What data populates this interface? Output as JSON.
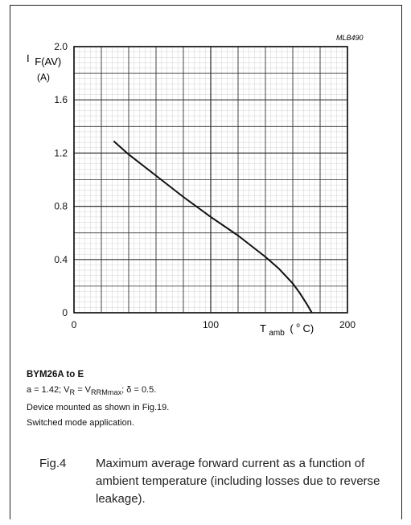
{
  "chart_data": {
    "type": "line",
    "ref_code": "MLB490",
    "ylabel_main": "I",
    "ylabel_sub": "F(AV)",
    "ylabel_unit": "(A)",
    "xlabel_main": "T",
    "xlabel_sub": "amb",
    "xlabel_unit_prefix": "(",
    "xlabel_unit_sup": "o",
    "xlabel_unit_suffix": "C)",
    "xlim": [
      0,
      200
    ],
    "ylim": [
      0,
      2.0
    ],
    "x_ticks": [
      "0",
      "100",
      "200"
    ],
    "y_ticks": [
      "0",
      "0.4",
      "0.8",
      "1.2",
      "1.6",
      "2.0"
    ],
    "grid": true,
    "series": [
      {
        "color": "#111111",
        "x": [
          29,
          40,
          60,
          80,
          100,
          120,
          140,
          150,
          160,
          165,
          170,
          174
        ],
        "y": [
          1.29,
          1.19,
          1.03,
          0.87,
          0.72,
          0.58,
          0.42,
          0.33,
          0.22,
          0.15,
          0.07,
          0.0
        ]
      }
    ]
  },
  "notes": {
    "device": "BYM26A to E",
    "line2": "a = 1.42; V",
    "line2_sub1": "R",
    "line2_mid": " = V",
    "line2_sub2": "RRMmax",
    "line2_end": "; δ = 0.5.",
    "line3": "Device mounted as shown in Fig.19.",
    "line4": "Switched mode application."
  },
  "caption": {
    "label": "Fig.4",
    "text": "Maximum average forward current as a function of ambient temperature (including losses due to reverse leakage)."
  }
}
